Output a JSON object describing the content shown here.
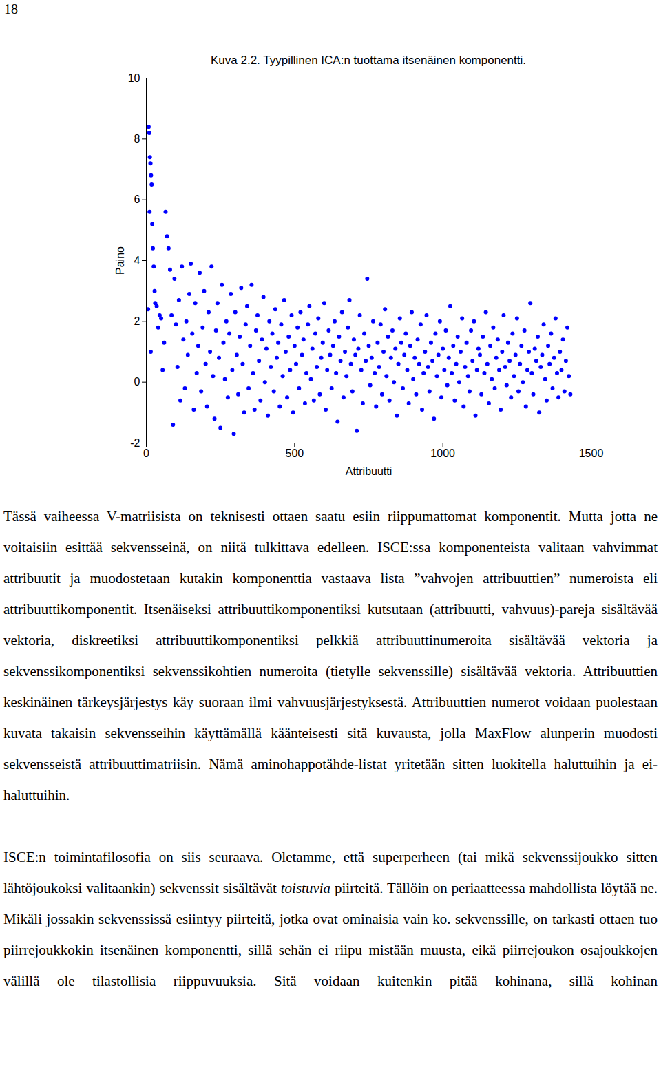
{
  "page_number": 18,
  "chart_data": {
    "type": "scatter",
    "title": "Kuva 2.2. Tyypillinen ICA:n tuottama itsenäinen komponentti.",
    "x_label": "Attribuutti",
    "y_label": "Paino",
    "color": "#0000ff",
    "marker": "circle",
    "xlim": [
      0,
      1500
    ],
    "xticks": [
      0,
      500,
      1000,
      1500
    ],
    "ylim": [
      -2,
      10
    ],
    "yticks": [
      -2,
      0,
      2,
      4,
      6,
      8,
      10
    ],
    "grid": false,
    "x": [
      8,
      10,
      12,
      14,
      16,
      18,
      11,
      20,
      22,
      25,
      28,
      6,
      30,
      35,
      40,
      45,
      50,
      55,
      60,
      15,
      65,
      70,
      75,
      80,
      85,
      90,
      95,
      100,
      105,
      110,
      115,
      120,
      125,
      130,
      135,
      140,
      145,
      150,
      155,
      160,
      165,
      170,
      175,
      180,
      185,
      190,
      195,
      200,
      205,
      210,
      215,
      220,
      225,
      230,
      235,
      240,
      245,
      250,
      255,
      260,
      265,
      270,
      275,
      280,
      285,
      290,
      295,
      300,
      305,
      310,
      315,
      320,
      325,
      330,
      335,
      340,
      345,
      350,
      355,
      360,
      365,
      370,
      375,
      380,
      385,
      390,
      395,
      400,
      405,
      410,
      415,
      420,
      425,
      430,
      435,
      440,
      445,
      450,
      455,
      460,
      465,
      470,
      475,
      480,
      485,
      490,
      495,
      500,
      505,
      510,
      515,
      520,
      525,
      530,
      535,
      540,
      545,
      550,
      555,
      560,
      565,
      570,
      575,
      580,
      585,
      590,
      595,
      600,
      605,
      610,
      615,
      620,
      625,
      630,
      635,
      640,
      645,
      650,
      655,
      660,
      665,
      670,
      675,
      680,
      685,
      690,
      695,
      700,
      705,
      710,
      715,
      720,
      725,
      730,
      735,
      740,
      745,
      750,
      755,
      760,
      765,
      770,
      775,
      780,
      785,
      790,
      795,
      800,
      805,
      810,
      815,
      820,
      825,
      830,
      835,
      840,
      845,
      850,
      855,
      860,
      865,
      870,
      875,
      880,
      885,
      890,
      895,
      900,
      905,
      910,
      915,
      920,
      925,
      930,
      935,
      940,
      945,
      950,
      955,
      960,
      965,
      970,
      975,
      980,
      985,
      990,
      995,
      1000,
      1005,
      1010,
      1015,
      1020,
      1025,
      1030,
      1035,
      1040,
      1045,
      1050,
      1055,
      1060,
      1065,
      1070,
      1075,
      1080,
      1085,
      1090,
      1095,
      1100,
      1105,
      1110,
      1115,
      1120,
      1125,
      1130,
      1135,
      1140,
      1145,
      1150,
      1155,
      1160,
      1165,
      1170,
      1175,
      1180,
      1185,
      1190,
      1195,
      1200,
      1205,
      1210,
      1215,
      1220,
      1225,
      1230,
      1235,
      1240,
      1245,
      1250,
      1255,
      1260,
      1265,
      1270,
      1275,
      1280,
      1285,
      1290,
      1295,
      1300,
      1305,
      1310,
      1315,
      1320,
      1325,
      1330,
      1335,
      1340,
      1345,
      1350,
      1355,
      1360,
      1365,
      1370,
      1375,
      1380,
      1385,
      1390,
      1395,
      1400,
      1405,
      1410,
      1415,
      1420,
      1425,
      1430
    ],
    "values": [
      8.4,
      8.2,
      7.4,
      7.2,
      6.8,
      6.5,
      5.6,
      5.2,
      4.4,
      3.8,
      3.0,
      2.4,
      2.6,
      2.5,
      1.8,
      2.2,
      2.1,
      0.4,
      1.3,
      1.0,
      5.6,
      4.8,
      4.4,
      3.7,
      2.2,
      -1.4,
      3.4,
      1.9,
      0.5,
      2.7,
      -0.6,
      3.8,
      1.4,
      -0.2,
      2.0,
      0.9,
      2.9,
      3.9,
      1.6,
      -0.9,
      2.6,
      0.3,
      1.2,
      3.6,
      -0.3,
      1.8,
      3.0,
      0.6,
      -0.8,
      2.3,
      1.0,
      3.8,
      0.2,
      -1.2,
      1.7,
      2.6,
      0.8,
      -1.5,
      3.2,
      1.3,
      0.1,
      2.0,
      -0.5,
      1.6,
      2.9,
      0.4,
      -1.7,
      2.3,
      0.9,
      -0.4,
      1.5,
      3.1,
      0.6,
      -1.0,
      1.9,
      2.5,
      -0.2,
      1.2,
      3.2,
      0.3,
      -0.9,
      1.7,
      2.2,
      0.7,
      -0.6,
      1.4,
      2.8,
      0.0,
      1.1,
      -1.1,
      2.0,
      0.5,
      1.6,
      -0.3,
      2.4,
      0.8,
      1.3,
      -0.8,
      1.9,
      0.2,
      2.7,
      1.0,
      -0.5,
      1.5,
      0.4,
      2.2,
      -1.0,
      1.2,
      0.6,
      1.8,
      -0.2,
      2.3,
      0.9,
      1.4,
      -0.7,
      0.3,
      1.9,
      2.5,
      0.1,
      1.1,
      -0.6,
      1.6,
      0.5,
      2.1,
      -0.4,
      0.8,
      1.3,
      2.6,
      -0.9,
      0.4,
      1.7,
      0.9,
      -0.2,
      1.2,
      2.0,
      0.3,
      -1.3,
      1.5,
      0.7,
      2.3,
      -0.5,
      1.0,
      0.2,
      1.8,
      2.7,
      0.6,
      -0.3,
      1.4,
      0.9,
      -1.6,
      1.1,
      2.2,
      0.4,
      -0.7,
      1.6,
      0.7,
      3.4,
      1.2,
      -0.1,
      0.8,
      2.0,
      0.3,
      -0.8,
      1.3,
      0.5,
      1.9,
      -0.4,
      1.0,
      2.4,
      0.2,
      1.5,
      -0.6,
      0.8,
      1.7,
      0.0,
      1.1,
      -1.1,
      0.6,
      2.1,
      1.3,
      -0.2,
      0.9,
      1.6,
      0.4,
      -0.7,
      1.2,
      2.3,
      0.1,
      0.8,
      -0.4,
      1.4,
      0.6,
      1.9,
      -0.9,
      0.3,
      1.0,
      2.2,
      0.5,
      -0.3,
      1.3,
      0.7,
      -1.2,
      1.6,
      0.2,
      0.9,
      2.0,
      -0.5,
      1.1,
      0.4,
      1.7,
      -0.1,
      0.8,
      2.5,
      0.3,
      1.2,
      -0.6,
      0.6,
      1.5,
      0.0,
      1.0,
      2.1,
      -0.8,
      0.5,
      1.3,
      0.2,
      -0.3,
      1.7,
      0.7,
      2.0,
      -1.1,
      0.4,
      1.1,
      0.9,
      -0.4,
      1.5,
      0.3,
      2.3,
      0.6,
      -0.7,
      1.2,
      0.1,
      1.8,
      -0.2,
      0.8,
      1.4,
      0.4,
      -0.9,
      1.0,
      2.2,
      0.5,
      -0.1,
      1.3,
      0.7,
      -0.5,
      1.6,
      0.2,
      0.9,
      2.1,
      -0.3,
      0.6,
      1.2,
      0.0,
      1.7,
      -0.8,
      0.4,
      1.0,
      2.6,
      0.3,
      -0.4,
      1.1,
      0.7,
      1.5,
      -1.0,
      0.5,
      0.9,
      1.9,
      0.1,
      -0.6,
      1.2,
      0.6,
      1.6,
      -0.2,
      0.8,
      2.1,
      0.3,
      -0.5,
      1.0,
      0.4,
      1.4,
      -0.3,
      0.7,
      1.8,
      0.2,
      -0.4
    ]
  },
  "paragraphs": [
    {
      "segments": [
        {
          "text": "Tässä vaiheessa V-matriisista on teknisesti ottaen saatu esiin riippumattomat komponentit. Mutta jotta ne voitaisiin esittää sekvensseinä, on niitä tulkittava edelleen. ISCE:ssa komponenteista valitaan vahvimmat attribuutit ja muodostetaan kutakin komponenttia vastaava lista ”vahvojen attribuuttien” numeroista eli attribuuttikomponentit. Itsenäiseksi attribuuttikomponentiksi kutsutaan (attribuutti, vahvuus)-pareja sisältävää vektoria, diskreetiksi attribuuttikomponentiksi pelkkiä attribuuttinumeroita sisältävää vektoria ja sekvenssikomponentiksi sekvenssikohtien numeroita (tietylle sekvenssille) sisältävää vektoria. Attribuuttien keskinäinen tärkeysjärjestys käy suoraan ilmi vahvuusjärjestyksestä. Attribuuttien numerot voidaan puolestaan kuvata takaisin sekvensseihin käyttämällä käänteisesti sitä kuvausta, jolla MaxFlow alunperin muodosti sekvensseistä attribuuttimatriisin. Nämä aminohappotähde-listat yritetään sitten luokitella haluttuihin ja ei-haluttuihin."
        }
      ]
    },
    {
      "segments": [
        {
          "text": "ISCE:n toimintafilosofia on siis seuraava. Oletamme, että superperheen (tai mikä sekvenssijoukko sitten lähtöjoukoksi valitaankin) sekvenssit sisältävät "
        },
        {
          "text": "toistuvia",
          "style": "italic"
        },
        {
          "text": " piirteitä. Tällöin on periaatteessa mahdollista löytää ne. Mikäli jossakin sekvenssissä esiintyy piirteitä, jotka ovat ominaisia vain ko. sekvenssille, on tarkasti ottaen tuo piirrejoukkokin itsenäinen komponentti, sillä sehän ei riipu mistään muusta, eikä piirrejoukon osajoukkojen välillä ole tilastollisia riippuvuuksia. Sitä voidaan kuitenkin pitää kohinana, sillä kohinan"
        }
      ]
    }
  ]
}
